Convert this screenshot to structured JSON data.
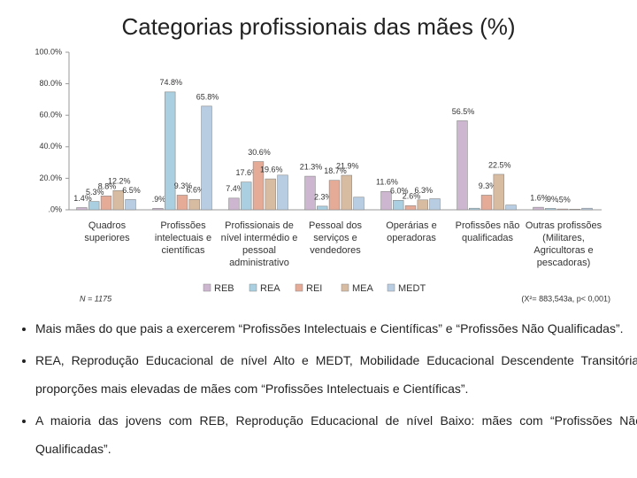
{
  "chart_data": {
    "type": "bar",
    "title": "Categorias profissionais das mães (%)",
    "categories": [
      "Quadros superiores",
      "Profissões intelectuais e científicas",
      "Profissionais de nível intermédio e pessoal administrativo",
      "Pessoal dos serviços e vendedores",
      "Operárias e operadoras",
      "Profissões não qualificadas",
      "Outras profissões (Militares, Agricultoras e pescadoras)"
    ],
    "series": [
      {
        "name": "REB",
        "color": "#cdb6cf",
        "values": [
          1.4,
          0.9,
          7.4,
          21.3,
          11.6,
          56.5,
          1.6
        ],
        "value_labels": [
          "1.4%",
          ".9%",
          "7.4%",
          "21.3%",
          "11.6%",
          "56.5%",
          "1.6%"
        ]
      },
      {
        "name": "REA",
        "color": "#a9cfe0",
        "values": [
          5.3,
          74.8,
          17.6,
          2.3,
          6.0,
          1.0,
          0.9
        ],
        "value_labels": [
          "5.3%",
          "74.8%",
          "17.6%",
          "2.3%",
          "6.0%",
          null,
          ".9%"
        ]
      },
      {
        "name": "REI",
        "color": "#e6ab96",
        "values": [
          8.8,
          9.3,
          30.6,
          18.7,
          2.6,
          9.3,
          0.5
        ],
        "value_labels": [
          "8.8%",
          "9.3%",
          "30.6%",
          "18.7%",
          "2.6%",
          "9.3%",
          ".5%"
        ]
      },
      {
        "name": "MEA",
        "color": "#d8bca2",
        "values": [
          12.2,
          6.6,
          19.6,
          21.9,
          6.3,
          22.5,
          0.4
        ],
        "value_labels": [
          "12.2%",
          "6.6%",
          "19.6%",
          "21.9%",
          "6.3%",
          "22.5%",
          null
        ]
      },
      {
        "name": "MEDT",
        "color": "#b9cde2",
        "values": [
          6.5,
          65.8,
          22.0,
          8.0,
          7.0,
          3.0,
          1.0
        ],
        "value_labels": [
          "6.5%",
          "65.8%",
          null,
          null,
          null,
          null,
          null
        ]
      }
    ],
    "ylim": [
      0,
      100
    ],
    "yticks": [
      {
        "value": 0,
        "label": ".0%"
      },
      {
        "value": 20,
        "label": "20.0%"
      },
      {
        "value": 40,
        "label": "40.0%"
      },
      {
        "value": 60,
        "label": "60.0%"
      },
      {
        "value": 80,
        "label": "80.0%"
      },
      {
        "value": 100,
        "label": "100.0%"
      }
    ],
    "legend": "bottom",
    "annotations": [
      "N = 1175",
      "(X²= 883,543a, p< 0,001)"
    ]
  },
  "bullets": [
    "Mais mães do que pais a exercerem “Profissões Intelectuais e Científicas” e “Profissões Não Qualificadas”.",
    "REA, Reprodução Educacional de nível Alto e MEDT, Mobilidade Educacional Descendente Transitória: proporções mais elevadas de mães com “Profissões Intelectuais e Científicas”.",
    "A maioria das jovens com REB, Reprodução Educacional de nível Baixo: mães com “Profissões Não Qualificadas”."
  ]
}
